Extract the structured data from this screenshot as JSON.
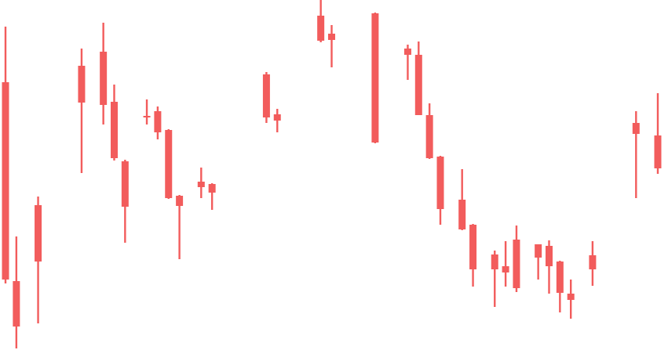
{
  "chart_data": {
    "type": "candlestick",
    "title": "",
    "xlabel": "",
    "ylabel": "",
    "axes_visible": false,
    "grid": false,
    "ylim": [
      0,
      447
    ],
    "candle_color": "#f25c5c",
    "x": [
      1,
      2,
      4,
      8,
      10,
      11,
      12,
      14,
      15,
      16,
      17,
      19,
      20,
      25,
      26,
      30,
      31,
      35,
      38,
      39,
      40,
      41,
      43,
      44,
      46,
      47,
      48,
      50,
      51,
      52,
      53,
      55,
      59,
      61
    ],
    "candles": [
      {
        "open": 342,
        "high": 413,
        "low": 85,
        "close": 90
      },
      {
        "open": 88,
        "high": 145,
        "low": 2,
        "close": 30
      },
      {
        "open": 185,
        "high": 196,
        "low": 34,
        "close": 113
      },
      {
        "open": 316,
        "high": 385,
        "low": 226,
        "close": 363
      },
      {
        "open": 381,
        "high": 418,
        "low": 288,
        "close": 313
      },
      {
        "open": 317,
        "high": 339,
        "low": 242,
        "close": 245
      },
      {
        "open": 241,
        "high": 243,
        "low": 137,
        "close": 183
      },
      {
        "open": 299,
        "high": 320,
        "low": 288,
        "close": 299
      },
      {
        "open": 305,
        "high": 311,
        "low": 269,
        "close": 278
      },
      {
        "open": 281,
        "high": 282,
        "low": 193,
        "close": 194
      },
      {
        "open": 197,
        "high": 198,
        "low": 116,
        "close": 184
      },
      {
        "open": 215,
        "high": 233,
        "low": 194,
        "close": 208
      },
      {
        "open": 212,
        "high": 213,
        "low": 179,
        "close": 201
      },
      {
        "open": 297,
        "high": 355,
        "low": 290,
        "close": 352
      },
      {
        "open": 301,
        "high": 308,
        "low": 278,
        "close": 293
      },
      {
        "open": 427,
        "high": 447,
        "low": 393,
        "close": 395
      },
      {
        "open": 404,
        "high": 415,
        "low": 361,
        "close": 396
      },
      {
        "open": 430,
        "high": 431,
        "low": 264,
        "close": 265
      },
      {
        "open": 385,
        "high": 390,
        "low": 345,
        "close": 377
      },
      {
        "open": 377,
        "high": 394,
        "low": 300,
        "close": 300
      },
      {
        "open": 300,
        "high": 315,
        "low": 244,
        "close": 245
      },
      {
        "open": 247,
        "high": 248,
        "low": 160,
        "close": 180
      },
      {
        "open": 192,
        "high": 231,
        "low": 153,
        "close": 154
      },
      {
        "open": 160,
        "high": 161,
        "low": 81,
        "close": 103
      },
      {
        "open": 122,
        "high": 127,
        "low": 55,
        "close": 103
      },
      {
        "open": 107,
        "high": 139,
        "low": 81,
        "close": 99
      },
      {
        "open": 141,
        "high": 159,
        "low": 74,
        "close": 79
      },
      {
        "open": 135,
        "high": 135,
        "low": 90,
        "close": 118
      },
      {
        "open": 133,
        "high": 140,
        "low": 72,
        "close": 107
      },
      {
        "open": 113,
        "high": 114,
        "low": 48,
        "close": 73
      },
      {
        "open": 72,
        "high": 90,
        "low": 40,
        "close": 64
      },
      {
        "open": 121,
        "high": 139,
        "low": 82,
        "close": 103
      },
      {
        "open": 290,
        "high": 305,
        "low": 194,
        "close": 276
      },
      {
        "open": 274,
        "high": 328,
        "low": 225,
        "close": 232
      }
    ]
  }
}
